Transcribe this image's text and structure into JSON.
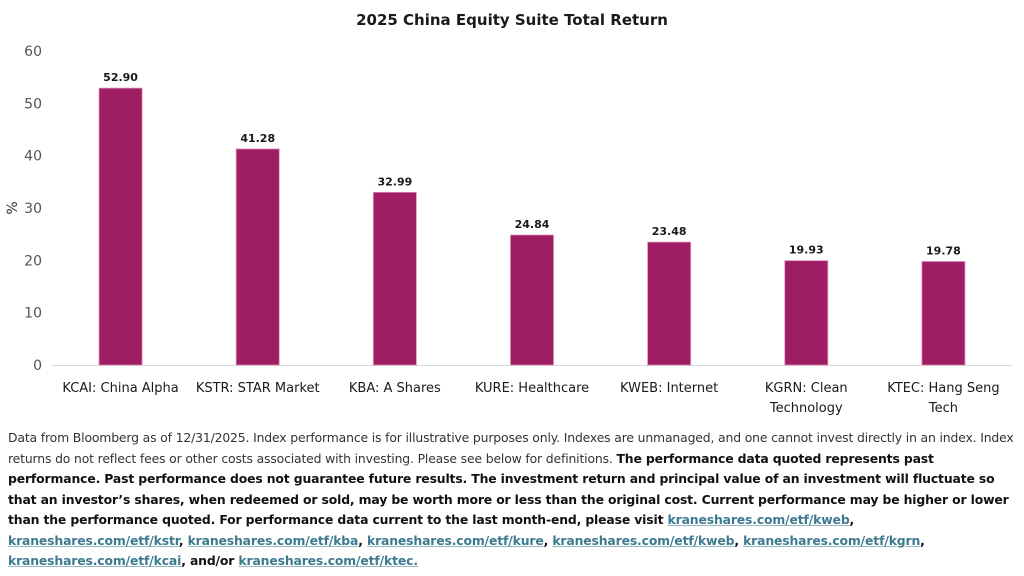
{
  "chart_data": {
    "type": "bar",
    "title": "2025 China Equity Suite Total Return",
    "xlabel": "",
    "ylabel": "%",
    "ylim": [
      0,
      60
    ],
    "yticks": [
      0,
      10,
      20,
      30,
      40,
      50,
      60
    ],
    "grid": false,
    "legend": "none",
    "bar_color": "#9e1d63",
    "categories": [
      [
        "KCAI: China Alpha"
      ],
      [
        "KSTR: STAR Market"
      ],
      [
        "KBA: A Shares"
      ],
      [
        "KURE: Healthcare"
      ],
      [
        "KWEB: Internet"
      ],
      [
        "KGRN: Clean",
        "Technology"
      ],
      [
        "KTEC: Hang Seng",
        "Tech"
      ]
    ],
    "values": [
      52.9,
      41.28,
      32.99,
      24.84,
      23.48,
      19.93,
      19.78
    ],
    "data_labels": [
      "52.90",
      "41.28",
      "32.99",
      "24.84",
      "23.48",
      "19.93",
      "19.78"
    ]
  },
  "footnote": {
    "plain": "Data from Bloomberg as of 12/31/2025. Index performance is for illustrative purposes only. Indexes are unmanaged, and one cannot invest directly in an index. Index returns do not reflect fees or other costs associated with investing. Please see below for definitions. ",
    "bold": "The performance data quoted represents past performance. Past performance does not guarantee future results. The investment return and principal value of an investment will fluctuate so that an investor’s shares, when redeemed or sold, may be worth more or less than the original cost. Current performance may be higher or lower than the performance quoted. For performance data current to the last month-end, please visit ",
    "links": [
      "kraneshares.com/etf/kweb",
      "kraneshares.com/etf/kstr",
      "kraneshares.com/etf/kba",
      "kraneshares.com/etf/kure",
      "kraneshares.com/etf/kweb",
      "kraneshares.com/etf/kgrn",
      "kraneshares.com/etf/kcai",
      "kraneshares.com/etf/ktec."
    ],
    "separator": ", ",
    "and_or": ", and/or "
  },
  "colors": {
    "bar": "#9e1d63",
    "bar_edge": "#d98ab3",
    "axis": "#d9d9d9",
    "link": "#3d7a8f"
  }
}
